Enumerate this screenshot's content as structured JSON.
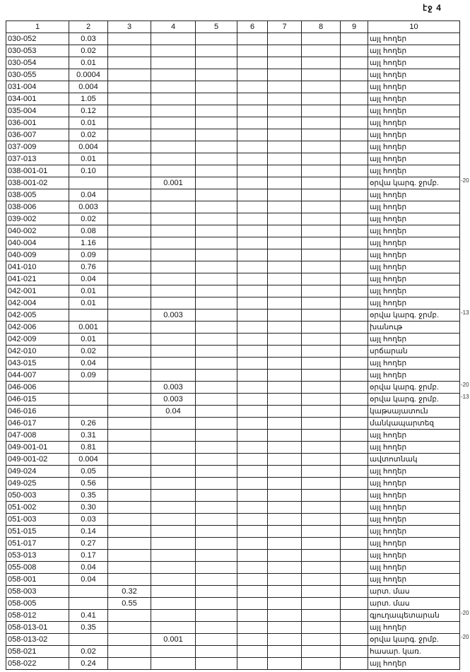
{
  "page_label": "էջ 4",
  "table": {
    "headers": [
      "1",
      "2",
      "3",
      "4",
      "5",
      "6",
      "7",
      "8",
      "9",
      "10"
    ],
    "rows": [
      {
        "c1": "030-052",
        "c2": "0.03",
        "c3": "",
        "c4": "",
        "c10": "այլ հողեր"
      },
      {
        "c1": "030-053",
        "c2": "0.02",
        "c3": "",
        "c4": "",
        "c10": "այլ հողեր"
      },
      {
        "c1": "030-054",
        "c2": "0.01",
        "c3": "",
        "c4": "",
        "c10": "այլ հողեր"
      },
      {
        "c1": "030-055",
        "c2": "0.0004",
        "c3": "",
        "c4": "",
        "c10": "այլ հողեր"
      },
      {
        "c1": "031-004",
        "c2": "0.004",
        "c3": "",
        "c4": "",
        "c10": "այլ հողեր"
      },
      {
        "c1": "034-001",
        "c2": "1.05",
        "c3": "",
        "c4": "",
        "c10": "այլ հողեր"
      },
      {
        "c1": "035-004",
        "c2": "0.12",
        "c3": "",
        "c4": "",
        "c10": "այլ հողեր"
      },
      {
        "c1": "036-001",
        "c2": "0.01",
        "c3": "",
        "c4": "",
        "c10": "այլ հողեր"
      },
      {
        "c1": "036-007",
        "c2": "0.02",
        "c3": "",
        "c4": "",
        "c10": "այլ հողեր"
      },
      {
        "c1": "037-009",
        "c2": "0.004",
        "c3": "",
        "c4": "",
        "c10": "այլ հողեր"
      },
      {
        "c1": "037-013",
        "c2": "0.01",
        "c3": "",
        "c4": "",
        "c10": "այլ հողեր"
      },
      {
        "c1": "038-001-01",
        "c2": "0.10",
        "c3": "",
        "c4": "",
        "c10": "այլ հողեր"
      },
      {
        "c1": "038-001-02",
        "c2": "",
        "c3": "",
        "c4": "0.001",
        "c10": "օրվա կարգ. ջրմբ.",
        "note": "-20"
      },
      {
        "c1": "038-005",
        "c2": "0.04",
        "c3": "",
        "c4": "",
        "c10": "այլ հողեր"
      },
      {
        "c1": "038-006",
        "c2": "0.003",
        "c3": "",
        "c4": "",
        "c10": "այլ հողեր"
      },
      {
        "c1": "039-002",
        "c2": "0.02",
        "c3": "",
        "c4": "",
        "c10": "այլ հողեր"
      },
      {
        "c1": "040-002",
        "c2": "0.08",
        "c3": "",
        "c4": "",
        "c10": "այլ հողեր"
      },
      {
        "c1": "040-004",
        "c2": "1.16",
        "c3": "",
        "c4": "",
        "c10": "այլ հողեր"
      },
      {
        "c1": "040-009",
        "c2": "0.09",
        "c3": "",
        "c4": "",
        "c10": "այլ հողեր"
      },
      {
        "c1": "041-010",
        "c2": "0.76",
        "c3": "",
        "c4": "",
        "c10": "այլ հողեր"
      },
      {
        "c1": "041-021",
        "c2": "0.04",
        "c3": "",
        "c4": "",
        "c10": "այլ հողեր"
      },
      {
        "c1": "042-001",
        "c2": "0.01",
        "c3": "",
        "c4": "",
        "c10": "այլ հողեր"
      },
      {
        "c1": "042-004",
        "c2": "0.01",
        "c3": "",
        "c4": "",
        "c10": "այլ հողեր"
      },
      {
        "c1": "042-005",
        "c2": "",
        "c3": "",
        "c4": "0.003",
        "c10": "օրվա կարգ. ջրմբ.",
        "note": "-13"
      },
      {
        "c1": "042-006",
        "c2": "0.001",
        "c3": "",
        "c4": "",
        "c10": "խանութ"
      },
      {
        "c1": "042-009",
        "c2": "0.01",
        "c3": "",
        "c4": "",
        "c10": "այլ հողեր"
      },
      {
        "c1": "042-010",
        "c2": "0.02",
        "c3": "",
        "c4": "",
        "c10": "սրճարան"
      },
      {
        "c1": "043-015",
        "c2": "0.04",
        "c3": "",
        "c4": "",
        "c10": "այլ հողեր"
      },
      {
        "c1": "044-007",
        "c2": "0.09",
        "c3": "",
        "c4": "",
        "c10": "այլ հողեր"
      },
      {
        "c1": "046-006",
        "c2": "",
        "c3": "",
        "c4": "0.003",
        "c10": "օրվա կարգ. ջրմբ.",
        "note": "-20"
      },
      {
        "c1": "046-015",
        "c2": "",
        "c3": "",
        "c4": "0.003",
        "c10": "օրվա կարգ. ջրմբ.",
        "note": "-13"
      },
      {
        "c1": "046-016",
        "c2": "",
        "c3": "",
        "c4": "0.04",
        "c10": "կաթսայատուն"
      },
      {
        "c1": "046-017",
        "c2": "0.26",
        "c3": "",
        "c4": "",
        "c10": "մանկապարտեզ"
      },
      {
        "c1": "047-008",
        "c2": "0.31",
        "c3": "",
        "c4": "",
        "c10": "այլ հողեր"
      },
      {
        "c1": "049-001-01",
        "c2": "0.81",
        "c3": "",
        "c4": "",
        "c10": "այլ հողեր"
      },
      {
        "c1": "049-001-02",
        "c2": "0.004",
        "c3": "",
        "c4": "",
        "c10": "ավտոտնակ"
      },
      {
        "c1": "049-024",
        "c2": "0.05",
        "c3": "",
        "c4": "",
        "c10": "այլ հողեր"
      },
      {
        "c1": "049-025",
        "c2": "0.56",
        "c3": "",
        "c4": "",
        "c10": "այլ հողեր"
      },
      {
        "c1": "050-003",
        "c2": "0.35",
        "c3": "",
        "c4": "",
        "c10": "այլ հողեր"
      },
      {
        "c1": "051-002",
        "c2": "0.30",
        "c3": "",
        "c4": "",
        "c10": "այլ հողեր"
      },
      {
        "c1": "051-003",
        "c2": "0.03",
        "c3": "",
        "c4": "",
        "c10": "այլ հողեր"
      },
      {
        "c1": "051-015",
        "c2": "0.14",
        "c3": "",
        "c4": "",
        "c10": "այլ հողեր"
      },
      {
        "c1": "051-017",
        "c2": "0.27",
        "c3": "",
        "c4": "",
        "c10": "այլ հողեր"
      },
      {
        "c1": "053-013",
        "c2": "0.17",
        "c3": "",
        "c4": "",
        "c10": "այլ հողեր"
      },
      {
        "c1": "055-008",
        "c2": "0.04",
        "c3": "",
        "c4": "",
        "c10": "այլ հողեր"
      },
      {
        "c1": "058-001",
        "c2": "0.04",
        "c3": "",
        "c4": "",
        "c10": "այլ հողեր"
      },
      {
        "c1": "058-003",
        "c2": "",
        "c3": "0.32",
        "c4": "",
        "c10": "արտ. մաս"
      },
      {
        "c1": "058-005",
        "c2": "",
        "c3": "0.55",
        "c4": "",
        "c10": "արտ. մաս"
      },
      {
        "c1": "058-012",
        "c2": "0.41",
        "c3": "",
        "c4": "",
        "c10": "գյուղապետարան",
        "note": "-20"
      },
      {
        "c1": "058-013-01",
        "c2": "0.35",
        "c3": "",
        "c4": "",
        "c10": "այլ հողեր"
      },
      {
        "c1": "058-013-02",
        "c2": "",
        "c3": "",
        "c4": "0.001",
        "c10": "օրվա կարգ. ջրմբ.",
        "note": "-20"
      },
      {
        "c1": "058-021",
        "c2": "0.02",
        "c3": "",
        "c4": "",
        "c10": "հասար. կառ."
      },
      {
        "c1": "058-022",
        "c2": "0.24",
        "c3": "",
        "c4": "",
        "c10": "այլ հողեր"
      }
    ]
  }
}
